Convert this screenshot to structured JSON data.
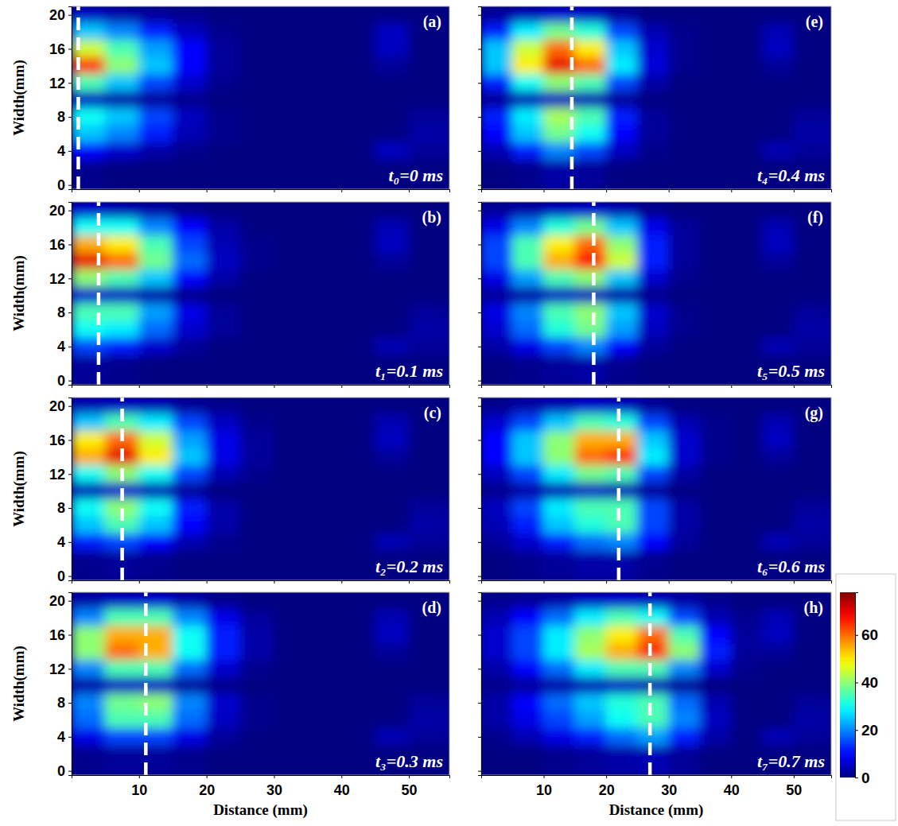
{
  "chart_data": [
    {
      "type": "heatmap",
      "title": "(a)",
      "annotation": "t₀=0 ms",
      "ylabel": "Width(mm)",
      "tick_labels": "y",
      "xlim": [
        0,
        56
      ],
      "ylim": [
        -0.5,
        21
      ],
      "xticks": [
        10,
        20,
        30,
        40,
        50
      ],
      "yticks": [
        0,
        4,
        8,
        12,
        16,
        20
      ],
      "dashed_line_x": 1,
      "x_edges": [
        0,
        5,
        10,
        15,
        20,
        25,
        30,
        35,
        40,
        45,
        50,
        56
      ],
      "y_edges": [
        21,
        19,
        17,
        15,
        13,
        11,
        9,
        7,
        5,
        3,
        -0.5
      ],
      "cells": [
        [
          5,
          3,
          2,
          1,
          0,
          0,
          0,
          0,
          0,
          0,
          0
        ],
        [
          25,
          20,
          12,
          5,
          1,
          0,
          0,
          0,
          0,
          5,
          0
        ],
        [
          45,
          35,
          22,
          10,
          2,
          0,
          0,
          0,
          0,
          5,
          0
        ],
        [
          65,
          40,
          25,
          10,
          2,
          0,
          0,
          0,
          0,
          2,
          0
        ],
        [
          35,
          25,
          15,
          6,
          1,
          0,
          0,
          0,
          0,
          0,
          0
        ],
        [
          5,
          3,
          2,
          1,
          0,
          0,
          0,
          0,
          0,
          0,
          0
        ],
        [
          30,
          25,
          15,
          5,
          1,
          0,
          0,
          0,
          0,
          0,
          2
        ],
        [
          25,
          20,
          12,
          4,
          1,
          0,
          0,
          0,
          0,
          0,
          3
        ],
        [
          10,
          6,
          3,
          1,
          0,
          0,
          0,
          0,
          0,
          5,
          2
        ],
        [
          1,
          0,
          0,
          0,
          0,
          0,
          0,
          0,
          0,
          0,
          0
        ]
      ]
    },
    {
      "type": "heatmap",
      "title": "(b)",
      "annotation": "t₁=0.1 ms",
      "ylabel": "Width(mm)",
      "tick_labels": "y",
      "xlim": [
        0,
        56
      ],
      "ylim": [
        -0.5,
        21
      ],
      "xticks": [
        10,
        20,
        30,
        40,
        50
      ],
      "yticks": [
        0,
        4,
        8,
        12,
        16,
        20
      ],
      "dashed_line_x": 4,
      "x_edges": [
        0,
        5,
        10,
        15,
        20,
        25,
        30,
        35,
        40,
        45,
        50,
        56
      ],
      "y_edges": [
        21,
        19,
        17,
        15,
        13,
        11,
        9,
        7,
        5,
        3,
        -0.5
      ],
      "cells": [
        [
          6,
          4,
          3,
          1,
          0,
          0,
          0,
          0,
          0,
          0,
          0
        ],
        [
          30,
          30,
          20,
          10,
          3,
          0,
          0,
          0,
          0,
          4,
          0
        ],
        [
          55,
          50,
          35,
          15,
          4,
          1,
          0,
          0,
          0,
          5,
          0
        ],
        [
          70,
          60,
          38,
          18,
          5,
          1,
          0,
          0,
          0,
          2,
          0
        ],
        [
          40,
          35,
          25,
          10,
          3,
          0,
          0,
          0,
          0,
          0,
          0
        ],
        [
          6,
          5,
          3,
          1,
          0,
          0,
          0,
          0,
          0,
          0,
          0
        ],
        [
          35,
          35,
          22,
          8,
          2,
          0,
          0,
          0,
          0,
          0,
          2
        ],
        [
          30,
          28,
          18,
          6,
          2,
          0,
          0,
          0,
          0,
          0,
          3
        ],
        [
          15,
          12,
          6,
          2,
          0,
          0,
          0,
          0,
          0,
          4,
          2
        ],
        [
          2,
          1,
          0,
          0,
          0,
          0,
          0,
          0,
          0,
          0,
          0
        ]
      ]
    },
    {
      "type": "heatmap",
      "title": "(c)",
      "annotation": "t₂=0.2 ms",
      "ylabel": "Width(mm)",
      "tick_labels": "y",
      "xlim": [
        0,
        56
      ],
      "ylim": [
        -0.5,
        21
      ],
      "xticks": [
        10,
        20,
        30,
        40,
        50
      ],
      "yticks": [
        0,
        4,
        8,
        12,
        16,
        20
      ],
      "dashed_line_x": 7.5,
      "x_edges": [
        0,
        5,
        10,
        15,
        20,
        25,
        30,
        35,
        40,
        45,
        50,
        56
      ],
      "y_edges": [
        21,
        19,
        17,
        15,
        13,
        11,
        9,
        7,
        5,
        3,
        -0.5
      ],
      "cells": [
        [
          4,
          5,
          4,
          2,
          1,
          0,
          0,
          0,
          0,
          0,
          0
        ],
        [
          25,
          35,
          28,
          15,
          5,
          1,
          0,
          0,
          0,
          4,
          0
        ],
        [
          50,
          60,
          45,
          22,
          8,
          2,
          0,
          0,
          0,
          5,
          0
        ],
        [
          55,
          70,
          50,
          25,
          8,
          2,
          0,
          0,
          0,
          2,
          0
        ],
        [
          30,
          40,
          30,
          15,
          4,
          1,
          0,
          0,
          0,
          0,
          0
        ],
        [
          4,
          6,
          4,
          2,
          0,
          0,
          0,
          0,
          0,
          0,
          0
        ],
        [
          30,
          40,
          30,
          12,
          3,
          0,
          0,
          0,
          0,
          0,
          2
        ],
        [
          25,
          35,
          25,
          10,
          3,
          0,
          0,
          0,
          0,
          0,
          3
        ],
        [
          12,
          15,
          10,
          4,
          1,
          0,
          0,
          0,
          0,
          4,
          2
        ],
        [
          1,
          2,
          1,
          0,
          0,
          0,
          0,
          0,
          0,
          0,
          0
        ]
      ]
    },
    {
      "type": "heatmap",
      "title": "(d)",
      "annotation": "t₃=0.3 ms",
      "xlabel": "Distance (mm)",
      "ylabel": "Width(mm)",
      "xlim": [
        0,
        56
      ],
      "ylim": [
        -0.5,
        21
      ],
      "xticks": [
        10,
        20,
        30,
        40,
        50
      ],
      "yticks": [
        0,
        4,
        8,
        12,
        16,
        20
      ],
      "dashed_line_x": 11,
      "x_edges": [
        0,
        5,
        10,
        15,
        20,
        25,
        30,
        35,
        40,
        45,
        50,
        56
      ],
      "y_edges": [
        21,
        19,
        17,
        15,
        13,
        11,
        9,
        7,
        5,
        3,
        -0.5
      ],
      "cells": [
        [
          3,
          5,
          6,
          3,
          1,
          0,
          0,
          0,
          0,
          0,
          0
        ],
        [
          20,
          35,
          35,
          20,
          8,
          2,
          0,
          0,
          0,
          4,
          0
        ],
        [
          40,
          55,
          55,
          30,
          12,
          3,
          0,
          0,
          0,
          5,
          0
        ],
        [
          40,
          60,
          55,
          30,
          12,
          3,
          0,
          0,
          0,
          2,
          0
        ],
        [
          20,
          35,
          35,
          18,
          6,
          1,
          0,
          0,
          0,
          0,
          0
        ],
        [
          3,
          5,
          5,
          2,
          1,
          0,
          0,
          0,
          0,
          0,
          0
        ],
        [
          20,
          38,
          40,
          20,
          6,
          1,
          0,
          0,
          0,
          0,
          2
        ],
        [
          18,
          35,
          35,
          18,
          5,
          1,
          0,
          0,
          0,
          0,
          3
        ],
        [
          8,
          15,
          15,
          8,
          2,
          0,
          0,
          0,
          0,
          4,
          2
        ],
        [
          1,
          2,
          2,
          1,
          0,
          0,
          0,
          0,
          0,
          0,
          0
        ]
      ]
    },
    {
      "type": "heatmap",
      "title": "(e)",
      "annotation": "t₄=0.4 ms",
      "tick_labels": false,
      "xlim": [
        0,
        56
      ],
      "ylim": [
        -0.5,
        21
      ],
      "xticks": [
        10,
        20,
        30,
        40,
        50
      ],
      "yticks": [
        0,
        4,
        8,
        12,
        16,
        20
      ],
      "dashed_line_x": 14.5,
      "x_edges": [
        0,
        5,
        10,
        15,
        20,
        25,
        30,
        35,
        40,
        45,
        50,
        56
      ],
      "y_edges": [
        21,
        19,
        17,
        15,
        13,
        11,
        9,
        7,
        5,
        3,
        -0.5
      ],
      "cells": [
        [
          2,
          4,
          6,
          5,
          2,
          0,
          0,
          0,
          0,
          0,
          0
        ],
        [
          12,
          28,
          38,
          32,
          15,
          4,
          1,
          0,
          0,
          4,
          0
        ],
        [
          25,
          45,
          60,
          50,
          25,
          6,
          1,
          0,
          0,
          5,
          0
        ],
        [
          25,
          50,
          70,
          60,
          28,
          7,
          1,
          0,
          0,
          2,
          0
        ],
        [
          12,
          30,
          40,
          35,
          15,
          3,
          0,
          0,
          0,
          0,
          0
        ],
        [
          2,
          4,
          5,
          4,
          2,
          0,
          0,
          0,
          0,
          0,
          0
        ],
        [
          12,
          28,
          42,
          35,
          12,
          2,
          0,
          0,
          0,
          0,
          2
        ],
        [
          10,
          25,
          38,
          30,
          10,
          2,
          0,
          0,
          0,
          0,
          3
        ],
        [
          4,
          12,
          20,
          15,
          5,
          1,
          0,
          0,
          0,
          4,
          2
        ],
        [
          0,
          1,
          3,
          2,
          0,
          0,
          0,
          0,
          0,
          0,
          0
        ]
      ]
    },
    {
      "type": "heatmap",
      "title": "(f)",
      "annotation": "t₅=0.5 ms",
      "tick_labels": false,
      "xlim": [
        0,
        56
      ],
      "ylim": [
        -0.5,
        21
      ],
      "xticks": [
        10,
        20,
        30,
        40,
        50
      ],
      "yticks": [
        0,
        4,
        8,
        12,
        16,
        20
      ],
      "dashed_line_x": 18,
      "x_edges": [
        0,
        5,
        10,
        15,
        20,
        25,
        30,
        35,
        40,
        45,
        50,
        56
      ],
      "y_edges": [
        21,
        19,
        17,
        15,
        13,
        11,
        9,
        7,
        5,
        3,
        -0.5
      ],
      "cells": [
        [
          2,
          3,
          5,
          6,
          4,
          1,
          0,
          0,
          0,
          0,
          0
        ],
        [
          8,
          20,
          32,
          38,
          25,
          8,
          2,
          0,
          0,
          4,
          0
        ],
        [
          15,
          35,
          50,
          60,
          40,
          12,
          2,
          0,
          0,
          5,
          0
        ],
        [
          15,
          35,
          55,
          68,
          45,
          12,
          2,
          0,
          0,
          2,
          0
        ],
        [
          8,
          22,
          35,
          40,
          25,
          6,
          1,
          0,
          0,
          0,
          0
        ],
        [
          2,
          3,
          5,
          5,
          3,
          1,
          0,
          0,
          0,
          0,
          0
        ],
        [
          8,
          20,
          35,
          40,
          25,
          6,
          1,
          0,
          0,
          0,
          2
        ],
        [
          6,
          18,
          32,
          38,
          22,
          5,
          1,
          0,
          0,
          0,
          3
        ],
        [
          3,
          8,
          15,
          20,
          10,
          2,
          0,
          0,
          0,
          4,
          2
        ],
        [
          0,
          1,
          2,
          3,
          1,
          0,
          0,
          0,
          0,
          0,
          0
        ]
      ]
    },
    {
      "type": "heatmap",
      "title": "(g)",
      "annotation": "t₆=0.6 ms",
      "tick_labels": false,
      "xlim": [
        0,
        56
      ],
      "ylim": [
        -0.5,
        21
      ],
      "xticks": [
        10,
        20,
        30,
        40,
        50
      ],
      "yticks": [
        0,
        4,
        8,
        12,
        16,
        20
      ],
      "dashed_line_x": 22,
      "x_edges": [
        0,
        5,
        10,
        15,
        20,
        25,
        30,
        35,
        40,
        45,
        50,
        56
      ],
      "y_edges": [
        21,
        19,
        17,
        15,
        13,
        11,
        9,
        7,
        5,
        3,
        -0.5
      ],
      "cells": [
        [
          1,
          3,
          4,
          6,
          5,
          2,
          0,
          0,
          0,
          0,
          0
        ],
        [
          6,
          15,
          25,
          35,
          32,
          15,
          4,
          1,
          0,
          4,
          0
        ],
        [
          10,
          25,
          40,
          55,
          55,
          25,
          6,
          1,
          0,
          5,
          0
        ],
        [
          10,
          25,
          40,
          60,
          65,
          28,
          6,
          1,
          0,
          2,
          0
        ],
        [
          5,
          15,
          28,
          38,
          35,
          15,
          3,
          0,
          0,
          0,
          0
        ],
        [
          1,
          3,
          4,
          5,
          4,
          2,
          0,
          0,
          0,
          0,
          0
        ],
        [
          5,
          15,
          28,
          35,
          35,
          15,
          3,
          0,
          0,
          0,
          2
        ],
        [
          4,
          12,
          25,
          32,
          35,
          15,
          3,
          0,
          0,
          0,
          3
        ],
        [
          2,
          6,
          12,
          18,
          20,
          10,
          2,
          0,
          0,
          4,
          2
        ],
        [
          0,
          1,
          2,
          3,
          3,
          1,
          0,
          0,
          0,
          0,
          0
        ]
      ]
    },
    {
      "type": "heatmap",
      "title": "(h)",
      "annotation": "t₇=0.7 ms",
      "xlabel": "Distance (mm)",
      "tick_labels": "x",
      "xlim": [
        0,
        56
      ],
      "ylim": [
        -0.5,
        21
      ],
      "xticks": [
        10,
        20,
        30,
        40,
        50
      ],
      "yticks": [
        0,
        4,
        8,
        12,
        16,
        20
      ],
      "dashed_line_x": 27,
      "x_edges": [
        0,
        5,
        10,
        15,
        20,
        25,
        30,
        35,
        40,
        45,
        50,
        56
      ],
      "y_edges": [
        21,
        19,
        17,
        15,
        13,
        11,
        9,
        7,
        5,
        3,
        -0.5
      ],
      "cells": [
        [
          1,
          2,
          3,
          5,
          6,
          5,
          3,
          1,
          0,
          0,
          0
        ],
        [
          4,
          10,
          18,
          28,
          35,
          30,
          15,
          4,
          1,
          4,
          0
        ],
        [
          6,
          15,
          28,
          40,
          50,
          60,
          35,
          10,
          2,
          5,
          0
        ],
        [
          6,
          15,
          28,
          42,
          55,
          65,
          40,
          12,
          2,
          2,
          0
        ],
        [
          3,
          10,
          18,
          28,
          35,
          35,
          20,
          6,
          1,
          0,
          0
        ],
        [
          1,
          2,
          3,
          4,
          5,
          4,
          2,
          0,
          0,
          0,
          0
        ],
        [
          3,
          10,
          18,
          25,
          32,
          35,
          18,
          4,
          0,
          0,
          2
        ],
        [
          3,
          8,
          15,
          22,
          30,
          35,
          20,
          5,
          0,
          0,
          3
        ],
        [
          1,
          4,
          8,
          12,
          18,
          22,
          12,
          3,
          0,
          4,
          2
        ],
        [
          0,
          0,
          1,
          2,
          3,
          4,
          2,
          0,
          0,
          0,
          0
        ]
      ]
    }
  ],
  "colorbar": {
    "range": [
      0,
      78
    ],
    "ticks": [
      0,
      20,
      40,
      60
    ]
  }
}
